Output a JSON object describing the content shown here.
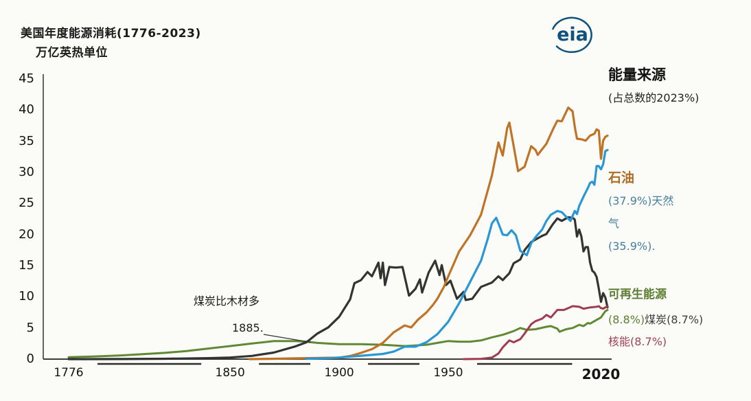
{
  "title": "美国年度能源消耗(1776-2023)",
  "subtitle": "万亿英热单位",
  "logo_text": "eia",
  "legend": {
    "heading": "能量来源",
    "subheading": "(占总数的2023%)",
    "petroleum_label": "石油",
    "gas_line1": "(37.9%)天然",
    "gas_line2": "气",
    "gas_line3": "(35.9%).",
    "renewables_label": "可再生能源",
    "coal_pct_prefix": "(8.8%)",
    "coal_label": "煤炭(8.7%)",
    "nuclear_label": "核能(8.7%)"
  },
  "annotation": {
    "line1": "煤炭比木材多",
    "line2": "1885.",
    "target_year": 1887,
    "target_value": 2.7
  },
  "colors": {
    "petroleum": "#bf7327",
    "natural_gas": "#2a97d5",
    "coal": "#333333",
    "renewables": "#5f8a33",
    "nuclear": "#a03c50",
    "axis": "#3c3c3c",
    "logo_blue": "#10527e",
    "gas_text": "#45809f",
    "petroleum_text": "#b06c26",
    "renewables_text": "#5d7d33",
    "coal_text": "#3d3d3d",
    "nuclear_text": "#9c4356"
  },
  "chart_data": {
    "type": "line",
    "title": "美国年度能源消耗(1776-2023)",
    "ylabel": "万亿英热单位",
    "xlim": [
      1776,
      2023
    ],
    "ylim": [
      0,
      45
    ],
    "yticks": [
      0,
      5,
      10,
      15,
      20,
      25,
      30,
      35,
      40,
      45
    ],
    "xticks": [
      1776,
      1850,
      1900,
      1950,
      2020
    ],
    "grid": false,
    "legend_position": "right",
    "series": [
      {
        "id": "renewables",
        "name": "可再生能源",
        "share_2023": "8.8%",
        "color": "#5f8a33",
        "width": 3,
        "points": [
          [
            1776,
            0.3
          ],
          [
            1790,
            0.45
          ],
          [
            1800,
            0.6
          ],
          [
            1810,
            0.8
          ],
          [
            1820,
            1.0
          ],
          [
            1830,
            1.3
          ],
          [
            1840,
            1.7
          ],
          [
            1850,
            2.1
          ],
          [
            1860,
            2.5
          ],
          [
            1870,
            2.9
          ],
          [
            1880,
            2.9
          ],
          [
            1885,
            2.8
          ],
          [
            1890,
            2.6
          ],
          [
            1900,
            2.4
          ],
          [
            1910,
            2.4
          ],
          [
            1920,
            2.3
          ],
          [
            1930,
            2.1
          ],
          [
            1935,
            2.2
          ],
          [
            1940,
            2.3
          ],
          [
            1945,
            2.6
          ],
          [
            1950,
            2.9
          ],
          [
            1955,
            2.8
          ],
          [
            1960,
            2.8
          ],
          [
            1965,
            3.0
          ],
          [
            1970,
            3.5
          ],
          [
            1975,
            3.9
          ],
          [
            1980,
            4.5
          ],
          [
            1983,
            5.0
          ],
          [
            1986,
            4.7
          ],
          [
            1990,
            4.8
          ],
          [
            1995,
            5.2
          ],
          [
            1997,
            5.3
          ],
          [
            2000,
            4.9
          ],
          [
            2001,
            4.4
          ],
          [
            2004,
            4.8
          ],
          [
            2007,
            5.0
          ],
          [
            2010,
            5.5
          ],
          [
            2012,
            5.3
          ],
          [
            2014,
            5.8
          ],
          [
            2015,
            5.7
          ],
          [
            2017,
            6.1
          ],
          [
            2019,
            6.5
          ],
          [
            2020,
            6.7
          ],
          [
            2021,
            7.2
          ],
          [
            2022,
            7.7
          ],
          [
            2023,
            7.9
          ]
        ]
      },
      {
        "id": "coal",
        "name": "煤炭",
        "share_2023": "8.7%",
        "color": "#333333",
        "width": 3.2,
        "points": [
          [
            1776,
            0.0
          ],
          [
            1800,
            0.01
          ],
          [
            1820,
            0.05
          ],
          [
            1840,
            0.15
          ],
          [
            1850,
            0.25
          ],
          [
            1860,
            0.52
          ],
          [
            1870,
            1.05
          ],
          [
            1880,
            2.05
          ],
          [
            1885,
            2.7
          ],
          [
            1890,
            4.1
          ],
          [
            1895,
            5.1
          ],
          [
            1900,
            6.8
          ],
          [
            1905,
            9.6
          ],
          [
            1907,
            12.2
          ],
          [
            1910,
            12.7
          ],
          [
            1913,
            14.0
          ],
          [
            1915,
            13.3
          ],
          [
            1918,
            15.5
          ],
          [
            1919,
            13.0
          ],
          [
            1920,
            15.5
          ],
          [
            1921,
            11.9
          ],
          [
            1923,
            14.8
          ],
          [
            1926,
            14.7
          ],
          [
            1929,
            14.8
          ],
          [
            1932,
            10.2
          ],
          [
            1935,
            11.3
          ],
          [
            1937,
            12.8
          ],
          [
            1938,
            10.7
          ],
          [
            1941,
            13.9
          ],
          [
            1944,
            15.8
          ],
          [
            1946,
            13.5
          ],
          [
            1947,
            15.1
          ],
          [
            1949,
            11.9
          ],
          [
            1951,
            12.6
          ],
          [
            1954,
            9.7
          ],
          [
            1957,
            10.8
          ],
          [
            1958,
            9.5
          ],
          [
            1961,
            9.7
          ],
          [
            1965,
            11.6
          ],
          [
            1970,
            12.3
          ],
          [
            1973,
            13.3
          ],
          [
            1975,
            12.7
          ],
          [
            1978,
            13.8
          ],
          [
            1980,
            15.4
          ],
          [
            1983,
            16.0
          ],
          [
            1985,
            17.5
          ],
          [
            1988,
            18.8
          ],
          [
            1990,
            19.2
          ],
          [
            1993,
            19.8
          ],
          [
            1995,
            20.1
          ],
          [
            1998,
            21.7
          ],
          [
            2000,
            22.6
          ],
          [
            2002,
            22.2
          ],
          [
            2005,
            22.8
          ],
          [
            2007,
            22.7
          ],
          [
            2008,
            22.4
          ],
          [
            2009,
            19.7
          ],
          [
            2010,
            20.8
          ],
          [
            2011,
            19.7
          ],
          [
            2012,
            17.3
          ],
          [
            2013,
            18.0
          ],
          [
            2014,
            18.0
          ],
          [
            2015,
            15.5
          ],
          [
            2016,
            14.2
          ],
          [
            2017,
            13.9
          ],
          [
            2018,
            13.2
          ],
          [
            2019,
            11.3
          ],
          [
            2020,
            9.2
          ],
          [
            2021,
            10.6
          ],
          [
            2022,
            9.9
          ],
          [
            2023,
            8.3
          ]
        ]
      },
      {
        "id": "petroleum",
        "name": "石油",
        "share_2023": "37.9%",
        "color": "#bf7327",
        "width": 3.2,
        "points": [
          [
            1859,
            0.0
          ],
          [
            1870,
            0.05
          ],
          [
            1880,
            0.12
          ],
          [
            1890,
            0.18
          ],
          [
            1900,
            0.24
          ],
          [
            1905,
            0.5
          ],
          [
            1910,
            1.0
          ],
          [
            1915,
            1.6
          ],
          [
            1920,
            2.6
          ],
          [
            1925,
            4.3
          ],
          [
            1930,
            5.4
          ],
          [
            1933,
            5.1
          ],
          [
            1936,
            6.3
          ],
          [
            1940,
            7.5
          ],
          [
            1943,
            8.7
          ],
          [
            1945,
            9.7
          ],
          [
            1948,
            11.6
          ],
          [
            1950,
            13.3
          ],
          [
            1955,
            17.3
          ],
          [
            1960,
            19.9
          ],
          [
            1965,
            23.2
          ],
          [
            1970,
            29.5
          ],
          [
            1973,
            34.8
          ],
          [
            1975,
            32.7
          ],
          [
            1977,
            37.1
          ],
          [
            1978,
            38.0
          ],
          [
            1980,
            34.2
          ],
          [
            1982,
            30.2
          ],
          [
            1985,
            30.9
          ],
          [
            1988,
            34.2
          ],
          [
            1990,
            33.6
          ],
          [
            1991,
            32.8
          ],
          [
            1995,
            34.6
          ],
          [
            1998,
            36.9
          ],
          [
            2000,
            38.3
          ],
          [
            2002,
            38.2
          ],
          [
            2005,
            40.4
          ],
          [
            2007,
            39.8
          ],
          [
            2008,
            37.3
          ],
          [
            2009,
            35.4
          ],
          [
            2011,
            35.3
          ],
          [
            2013,
            35.1
          ],
          [
            2015,
            35.9
          ],
          [
            2017,
            36.2
          ],
          [
            2018,
            36.9
          ],
          [
            2019,
            36.7
          ],
          [
            2020,
            32.2
          ],
          [
            2021,
            35.1
          ],
          [
            2022,
            35.7
          ],
          [
            2023,
            35.9
          ]
        ]
      },
      {
        "id": "natural-gas",
        "name": "天然气",
        "share_2023": "35.9%",
        "color": "#2a97d5",
        "width": 3.2,
        "points": [
          [
            1885,
            0.05
          ],
          [
            1895,
            0.14
          ],
          [
            1900,
            0.25
          ],
          [
            1910,
            0.54
          ],
          [
            1920,
            0.83
          ],
          [
            1925,
            1.2
          ],
          [
            1930,
            2.0
          ],
          [
            1935,
            2.0
          ],
          [
            1940,
            2.7
          ],
          [
            1945,
            4.0
          ],
          [
            1950,
            6.0
          ],
          [
            1955,
            9.0
          ],
          [
            1960,
            12.4
          ],
          [
            1965,
            15.8
          ],
          [
            1968,
            19.2
          ],
          [
            1970,
            21.8
          ],
          [
            1972,
            22.7
          ],
          [
            1975,
            20.0
          ],
          [
            1977,
            19.9
          ],
          [
            1979,
            20.7
          ],
          [
            1981,
            19.9
          ],
          [
            1983,
            17.4
          ],
          [
            1986,
            16.7
          ],
          [
            1988,
            18.6
          ],
          [
            1990,
            19.6
          ],
          [
            1993,
            20.8
          ],
          [
            1995,
            22.2
          ],
          [
            1997,
            23.2
          ],
          [
            2000,
            23.8
          ],
          [
            2002,
            23.6
          ],
          [
            2004,
            22.9
          ],
          [
            2006,
            22.2
          ],
          [
            2008,
            23.8
          ],
          [
            2009,
            23.3
          ],
          [
            2010,
            24.6
          ],
          [
            2012,
            26.1
          ],
          [
            2014,
            27.5
          ],
          [
            2015,
            28.3
          ],
          [
            2016,
            28.5
          ],
          [
            2017,
            28.0
          ],
          [
            2018,
            31.0
          ],
          [
            2019,
            31.0
          ],
          [
            2020,
            30.5
          ],
          [
            2021,
            31.3
          ],
          [
            2022,
            33.4
          ],
          [
            2023,
            33.6
          ]
        ]
      },
      {
        "id": "nuclear",
        "name": "核能",
        "share_2023": "8.7%",
        "color": "#a03c50",
        "width": 3,
        "points": [
          [
            1957,
            0.0
          ],
          [
            1960,
            0.01
          ],
          [
            1965,
            0.04
          ],
          [
            1970,
            0.24
          ],
          [
            1973,
            0.9
          ],
          [
            1975,
            1.9
          ],
          [
            1978,
            3.0
          ],
          [
            1980,
            2.7
          ],
          [
            1983,
            3.2
          ],
          [
            1985,
            4.1
          ],
          [
            1988,
            5.6
          ],
          [
            1990,
            6.1
          ],
          [
            1993,
            6.5
          ],
          [
            1995,
            7.1
          ],
          [
            1997,
            6.7
          ],
          [
            2000,
            7.9
          ],
          [
            2003,
            7.9
          ],
          [
            2005,
            8.2
          ],
          [
            2007,
            8.5
          ],
          [
            2010,
            8.4
          ],
          [
            2012,
            8.1
          ],
          [
            2015,
            8.3
          ],
          [
            2018,
            8.4
          ],
          [
            2019,
            8.5
          ],
          [
            2020,
            8.2
          ],
          [
            2021,
            8.1
          ],
          [
            2023,
            8.5
          ]
        ]
      }
    ]
  }
}
